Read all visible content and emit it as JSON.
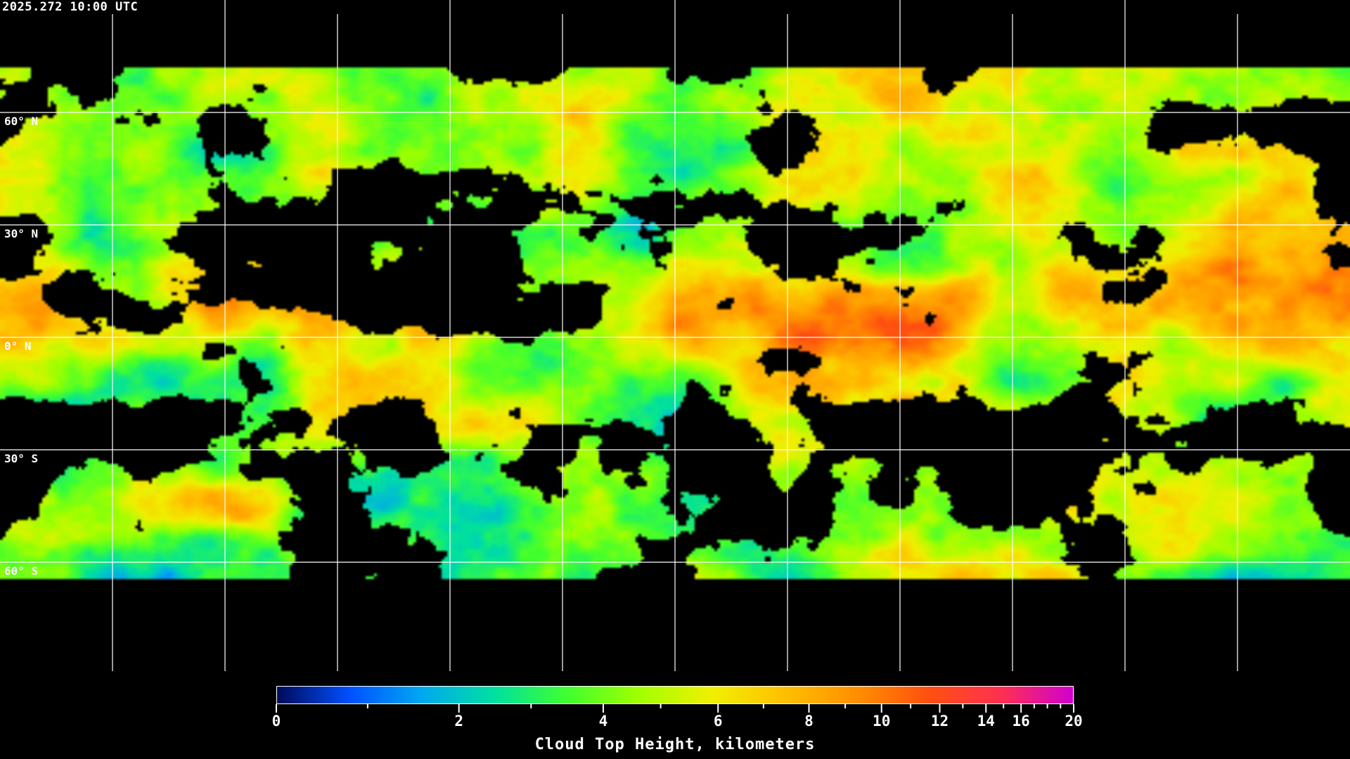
{
  "title": "2025.272 10:00 UTC",
  "map": {
    "projection": "equirectangular",
    "latitude_labels": [
      "60° N",
      "30° N",
      "0° N",
      "30° S",
      "60° S"
    ],
    "latitudes": [
      60,
      30,
      0,
      -30,
      -60
    ],
    "longitude_gridlines": 11,
    "gridline_color": "#ffffff",
    "coastline_color": "#ffffff",
    "clear_sky_color": "#000000"
  },
  "colorbar": {
    "title": "Cloud Top Height, kilometers",
    "min": 0,
    "max": 20,
    "major_ticks": [
      "0",
      "2",
      "4",
      "6",
      "8",
      "10",
      "12",
      "14",
      "16",
      "20"
    ],
    "minor_ticks": [
      1,
      3,
      5,
      7,
      9,
      11,
      13,
      15,
      17,
      18,
      19
    ],
    "colors": [
      "#000a5a",
      "#0050ff",
      "#00a8f0",
      "#00e0a0",
      "#40ff30",
      "#a0ff00",
      "#f0f000",
      "#ffc000",
      "#ff9000",
      "#ff5010",
      "#ff3050",
      "#d000d0"
    ]
  }
}
